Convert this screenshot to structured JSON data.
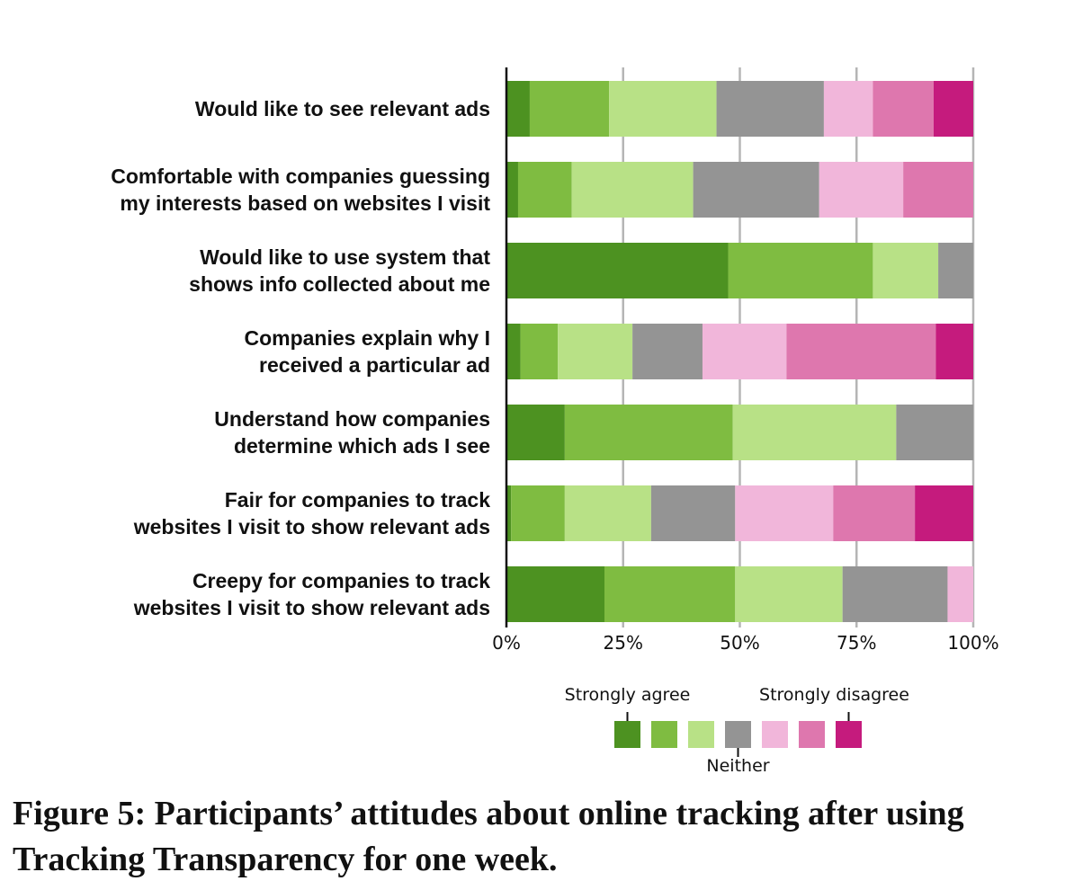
{
  "caption": "Figure 5: Participants’ attitudes about online tracking after using Tracking Transparency for one week.",
  "chart_data": {
    "type": "bar",
    "orientation": "horizontal",
    "stacked": true,
    "normalized": true,
    "categories": [
      [
        "Would like to see relevant ads"
      ],
      [
        "Comfortable with companies guessing",
        "my interests based on websites I visit"
      ],
      [
        "Would like to use system that",
        "shows info collected about me"
      ],
      [
        "Companies explain why I",
        "received a particular ad"
      ],
      [
        "Understand how companies",
        "determine which ads I see"
      ],
      [
        "Fair for companies to track",
        "websites I visit to show relevant ads"
      ],
      [
        "Creepy for companies to track",
        "websites I visit to show relevant ads"
      ]
    ],
    "series": [
      {
        "color": "#4d9221",
        "values": [
          5,
          2.5,
          47.5,
          3,
          12.5,
          1,
          21
        ]
      },
      {
        "color": "#7fbc41",
        "values": [
          17,
          11.5,
          31,
          8,
          36,
          11.5,
          28
        ]
      },
      {
        "color": "#b8e186",
        "values": [
          23,
          26,
          14,
          16,
          35,
          18.5,
          23
        ]
      },
      {
        "color": "#949494",
        "values": [
          23,
          27,
          7.5,
          15,
          16.5,
          18,
          22.5
        ]
      },
      {
        "color": "#f1b6da",
        "values": [
          10.5,
          18,
          0,
          18,
          0,
          21,
          5.5
        ]
      },
      {
        "color": "#de77ae",
        "values": [
          13,
          15,
          0,
          32,
          0,
          17.5,
          0
        ]
      },
      {
        "color": "#c51b7d",
        "values": [
          8.5,
          0,
          0,
          8,
          0,
          12.5,
          0
        ]
      }
    ],
    "xlim": [
      0,
      100
    ],
    "xticks": [
      "0%",
      "25%",
      "50%",
      "75%",
      "100%"
    ],
    "grid": true,
    "legend": {
      "position": "bottom",
      "labels": {
        "left": "Strongly agree",
        "middle": "Neither",
        "right": "Strongly disagree"
      }
    }
  }
}
